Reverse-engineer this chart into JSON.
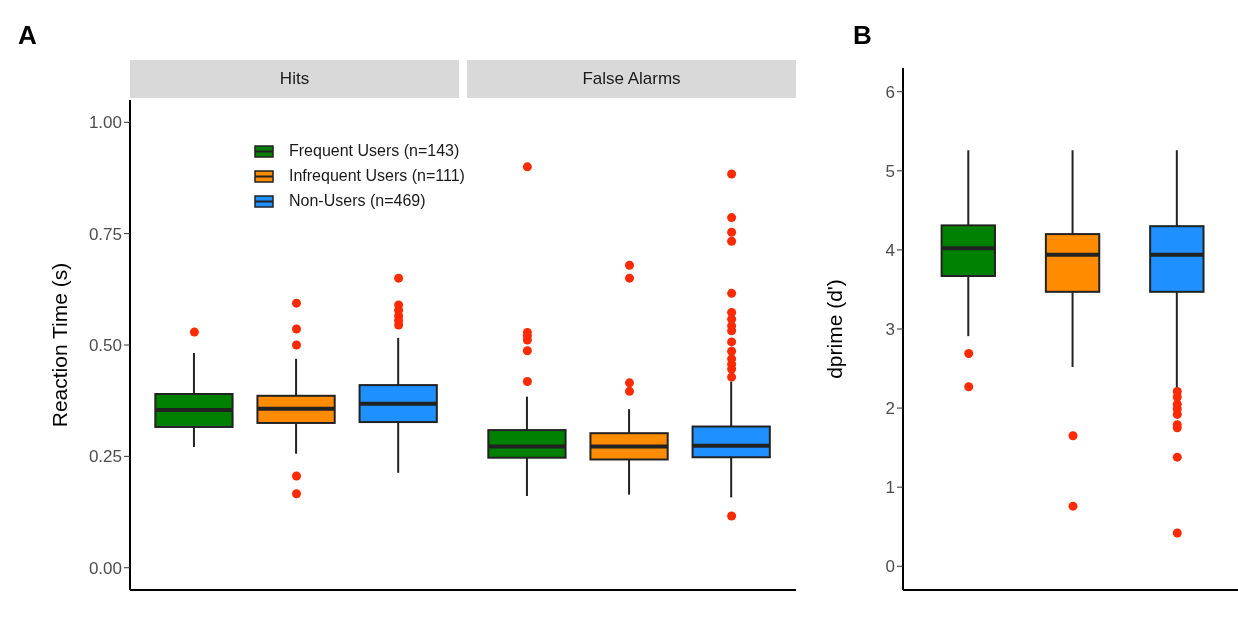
{
  "chart_data": [
    {
      "type": "box",
      "ylabel": "Reaction Time (s)",
      "annotations": [
        "A"
      ],
      "categories": [
        "Hits",
        "False Alarms"
      ],
      "ylim": [
        -0.05,
        1.05
      ],
      "yticks": [
        {
          "value": 0,
          "label": "0.00"
        },
        {
          "value": 0.25,
          "label": "0.25"
        },
        {
          "value": 0.5,
          "label": "0.50"
        },
        {
          "value": 0.75,
          "label": "0.75"
        },
        {
          "value": 1,
          "label": "1.00"
        }
      ],
      "grid": false,
      "legend": "top",
      "series": [
        {
          "name": "Frequent Users (n=143)",
          "color": "#008000",
          "boxes": [
            {
              "low": 0.271,
              "q1": 0.316,
              "median": 0.354,
              "q3": 0.39,
              "high": 0.482,
              "outliers": [
                0.529
              ]
            },
            {
              "low": 0.161,
              "q1": 0.247,
              "median": 0.272,
              "q3": 0.309,
              "high": 0.384,
              "outliers": [
                0.9,
                0.528,
                0.52,
                0.511,
                0.487,
                0.418
              ]
            }
          ]
        },
        {
          "name": "Infrequent Users (n=111)",
          "color": "#ff8c00",
          "boxes": [
            {
              "low": 0.256,
              "q1": 0.325,
              "median": 0.357,
              "q3": 0.386,
              "high": 0.469,
              "outliers": [
                0.594,
                0.536,
                0.5,
                0.206,
                0.166
              ]
            },
            {
              "low": 0.164,
              "q1": 0.243,
              "median": 0.272,
              "q3": 0.302,
              "high": 0.356,
              "outliers": [
                0.679,
                0.65,
                0.415,
                0.396
              ]
            }
          ]
        },
        {
          "name": "Non-Users (n=469)",
          "color": "#1e90ff",
          "boxes": [
            {
              "low": 0.213,
              "q1": 0.327,
              "median": 0.368,
              "q3": 0.41,
              "high": 0.516,
              "outliers": [
                0.65,
                0.59,
                0.578,
                0.565,
                0.555,
                0.545
              ]
            },
            {
              "low": 0.158,
              "q1": 0.248,
              "median": 0.274,
              "q3": 0.317,
              "high": 0.418,
              "outliers": [
                0.116,
                0.884,
                0.786,
                0.753,
                0.733,
                0.616,
                0.573,
                0.558,
                0.543,
                0.532,
                0.507,
                0.486,
                0.469,
                0.457,
                0.446,
                0.428
              ]
            }
          ]
        }
      ]
    },
    {
      "type": "box",
      "ylabel": "dprime (d')",
      "annotations": [
        "B"
      ],
      "categories": [
        null
      ],
      "ylim": [
        -0.3,
        6.3
      ],
      "yticks": [
        0,
        1,
        2,
        3,
        4,
        5,
        6
      ],
      "grid": false,
      "tick_labels": "y",
      "series": [
        {
          "color": "#008000",
          "boxes": [
            {
              "low": 2.91,
              "q1": 3.67,
              "median": 4.02,
              "q3": 4.31,
              "high": 5.26,
              "outliers": [
                2.69,
                2.27
              ]
            }
          ]
        },
        {
          "color": "#ff8c00",
          "boxes": [
            {
              "low": 2.52,
              "q1": 3.47,
              "median": 3.94,
              "q3": 4.2,
              "high": 5.26,
              "outliers": [
                1.65,
                0.76
              ]
            }
          ]
        },
        {
          "color": "#1e90ff",
          "boxes": [
            {
              "low": 2.25,
              "q1": 3.47,
              "median": 3.94,
              "q3": 4.3,
              "high": 5.26,
              "outliers": [
                2.21,
                2.14,
                2.05,
                1.99,
                1.92,
                1.79,
                1.75,
                1.38,
                0.42
              ]
            }
          ]
        }
      ]
    }
  ]
}
